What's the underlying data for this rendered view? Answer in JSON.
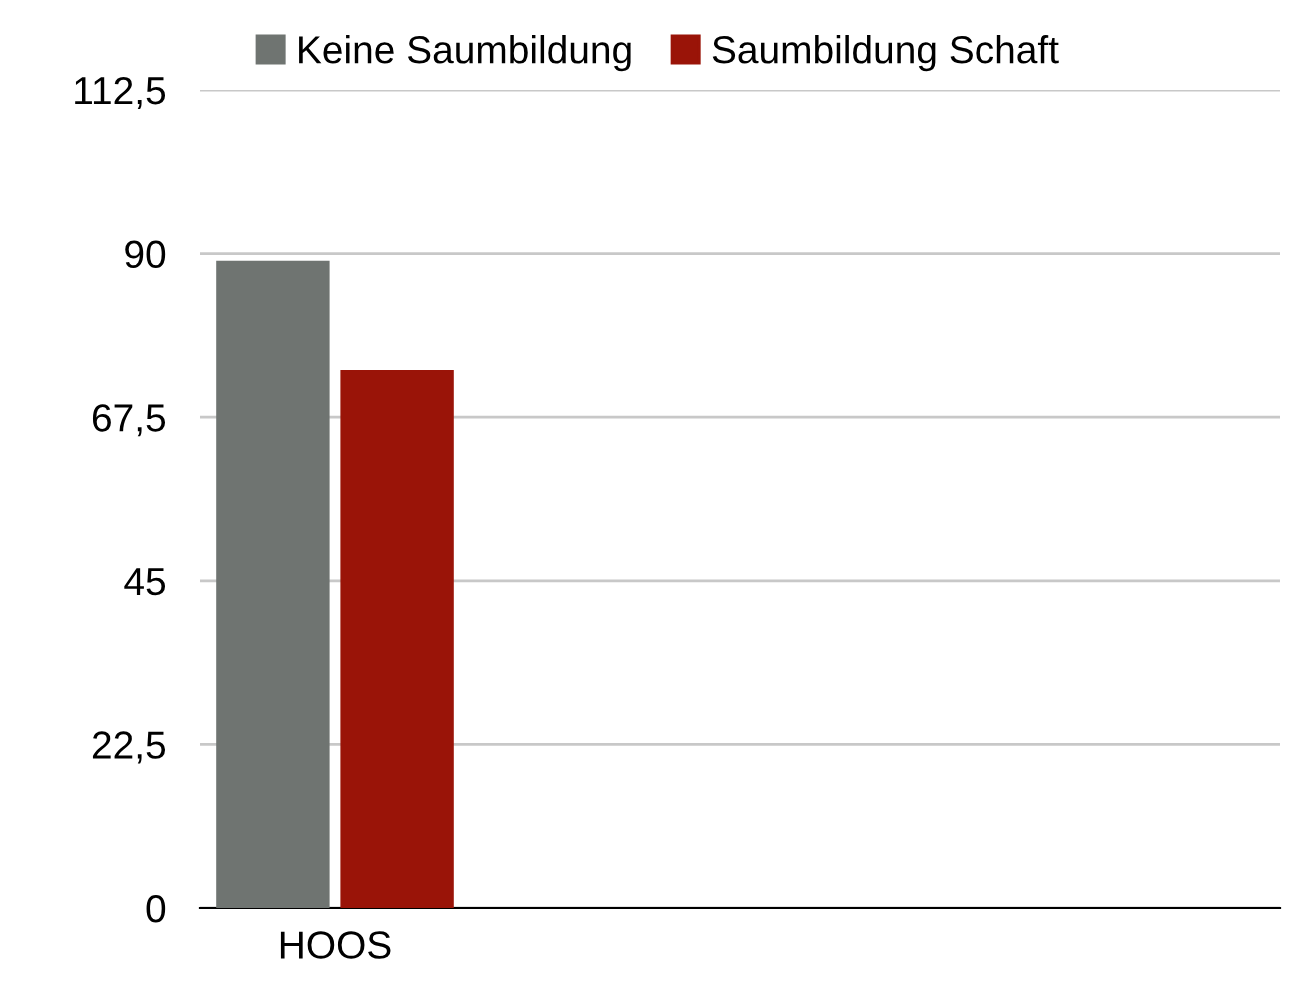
{
  "chart_data": {
    "type": "bar",
    "categories": [
      "HOOS"
    ],
    "series": [
      {
        "name": "Keine Saumbildung",
        "color": "#6f7471",
        "values": [
          89
        ]
      },
      {
        "name": "Saumbildung Schaft",
        "color": "#9a1408",
        "values": [
          74
        ]
      }
    ],
    "ylim": [
      0,
      112.5
    ],
    "yticks": [
      0,
      {
        "value": 22.5,
        "label": "22,5"
      },
      45,
      {
        "value": 67.5,
        "label": "67,5"
      },
      90,
      {
        "value": 112.5,
        "label": "112,5"
      }
    ],
    "grid": "y",
    "legend": "top"
  }
}
